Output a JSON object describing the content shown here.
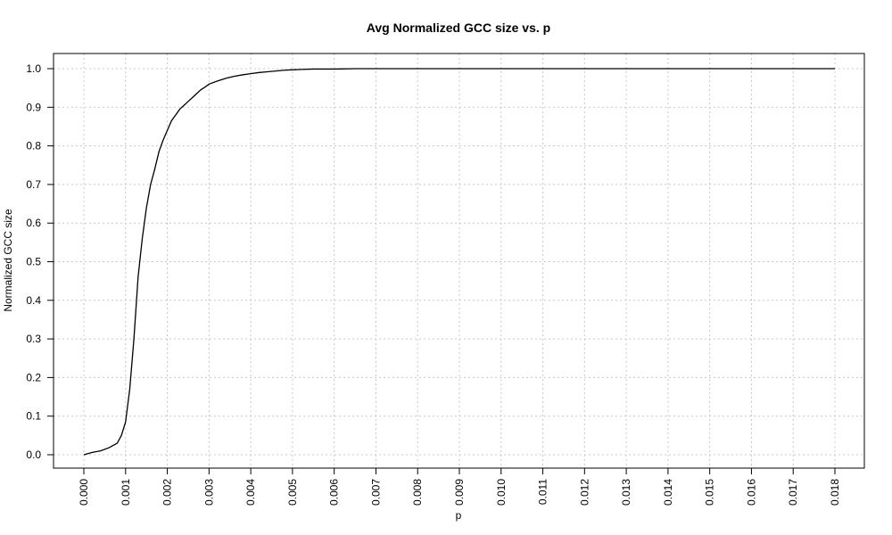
{
  "chart_data": {
    "type": "line",
    "title": "Avg Normalized GCC size vs. p",
    "xlabel": "p",
    "ylabel": "Normalized GCC size",
    "xlim": [
      0.0,
      0.018
    ],
    "ylim": [
      0.0,
      1.0
    ],
    "x_ticks": [
      "0.000",
      "0.001",
      "0.002",
      "0.003",
      "0.004",
      "0.005",
      "0.006",
      "0.007",
      "0.008",
      "0.009",
      "0.010",
      "0.011",
      "0.012",
      "0.013",
      "0.014",
      "0.015",
      "0.016",
      "0.017",
      "0.018"
    ],
    "y_ticks": [
      "0.0",
      "0.1",
      "0.2",
      "0.3",
      "0.4",
      "0.5",
      "0.6",
      "0.7",
      "0.8",
      "0.9",
      "1.0"
    ],
    "grid": true,
    "series": [
      {
        "x": [
          0.0,
          0.0002,
          0.0004,
          0.0006,
          0.0008,
          0.0009,
          0.001,
          0.0011,
          0.0012,
          0.0013,
          0.0014,
          0.0015,
          0.0016,
          0.0017,
          0.0018,
          0.0019,
          0.002,
          0.0021,
          0.0022,
          0.0023,
          0.0024,
          0.0025,
          0.0026,
          0.0027,
          0.0028,
          0.0029,
          0.003,
          0.0032,
          0.0034,
          0.0036,
          0.0038,
          0.004,
          0.0042,
          0.0044,
          0.0046,
          0.0048,
          0.005,
          0.0052,
          0.0055,
          0.006,
          0.0065,
          0.007,
          0.0075,
          0.008,
          0.009,
          0.01,
          0.011,
          0.012,
          0.013,
          0.014,
          0.015,
          0.016,
          0.017,
          0.018
        ],
        "values": [
          0.0,
          0.006,
          0.01,
          0.018,
          0.03,
          0.05,
          0.085,
          0.17,
          0.3,
          0.46,
          0.56,
          0.64,
          0.7,
          0.74,
          0.785,
          0.815,
          0.84,
          0.865,
          0.88,
          0.895,
          0.905,
          0.915,
          0.925,
          0.935,
          0.945,
          0.952,
          0.96,
          0.968,
          0.975,
          0.98,
          0.984,
          0.987,
          0.99,
          0.992,
          0.994,
          0.996,
          0.997,
          0.998,
          0.999,
          0.999,
          1.0,
          1.0,
          1.0,
          1.0,
          1.0,
          1.0,
          1.0,
          1.0,
          1.0,
          1.0,
          1.0,
          1.0,
          1.0,
          1.0
        ]
      }
    ]
  }
}
